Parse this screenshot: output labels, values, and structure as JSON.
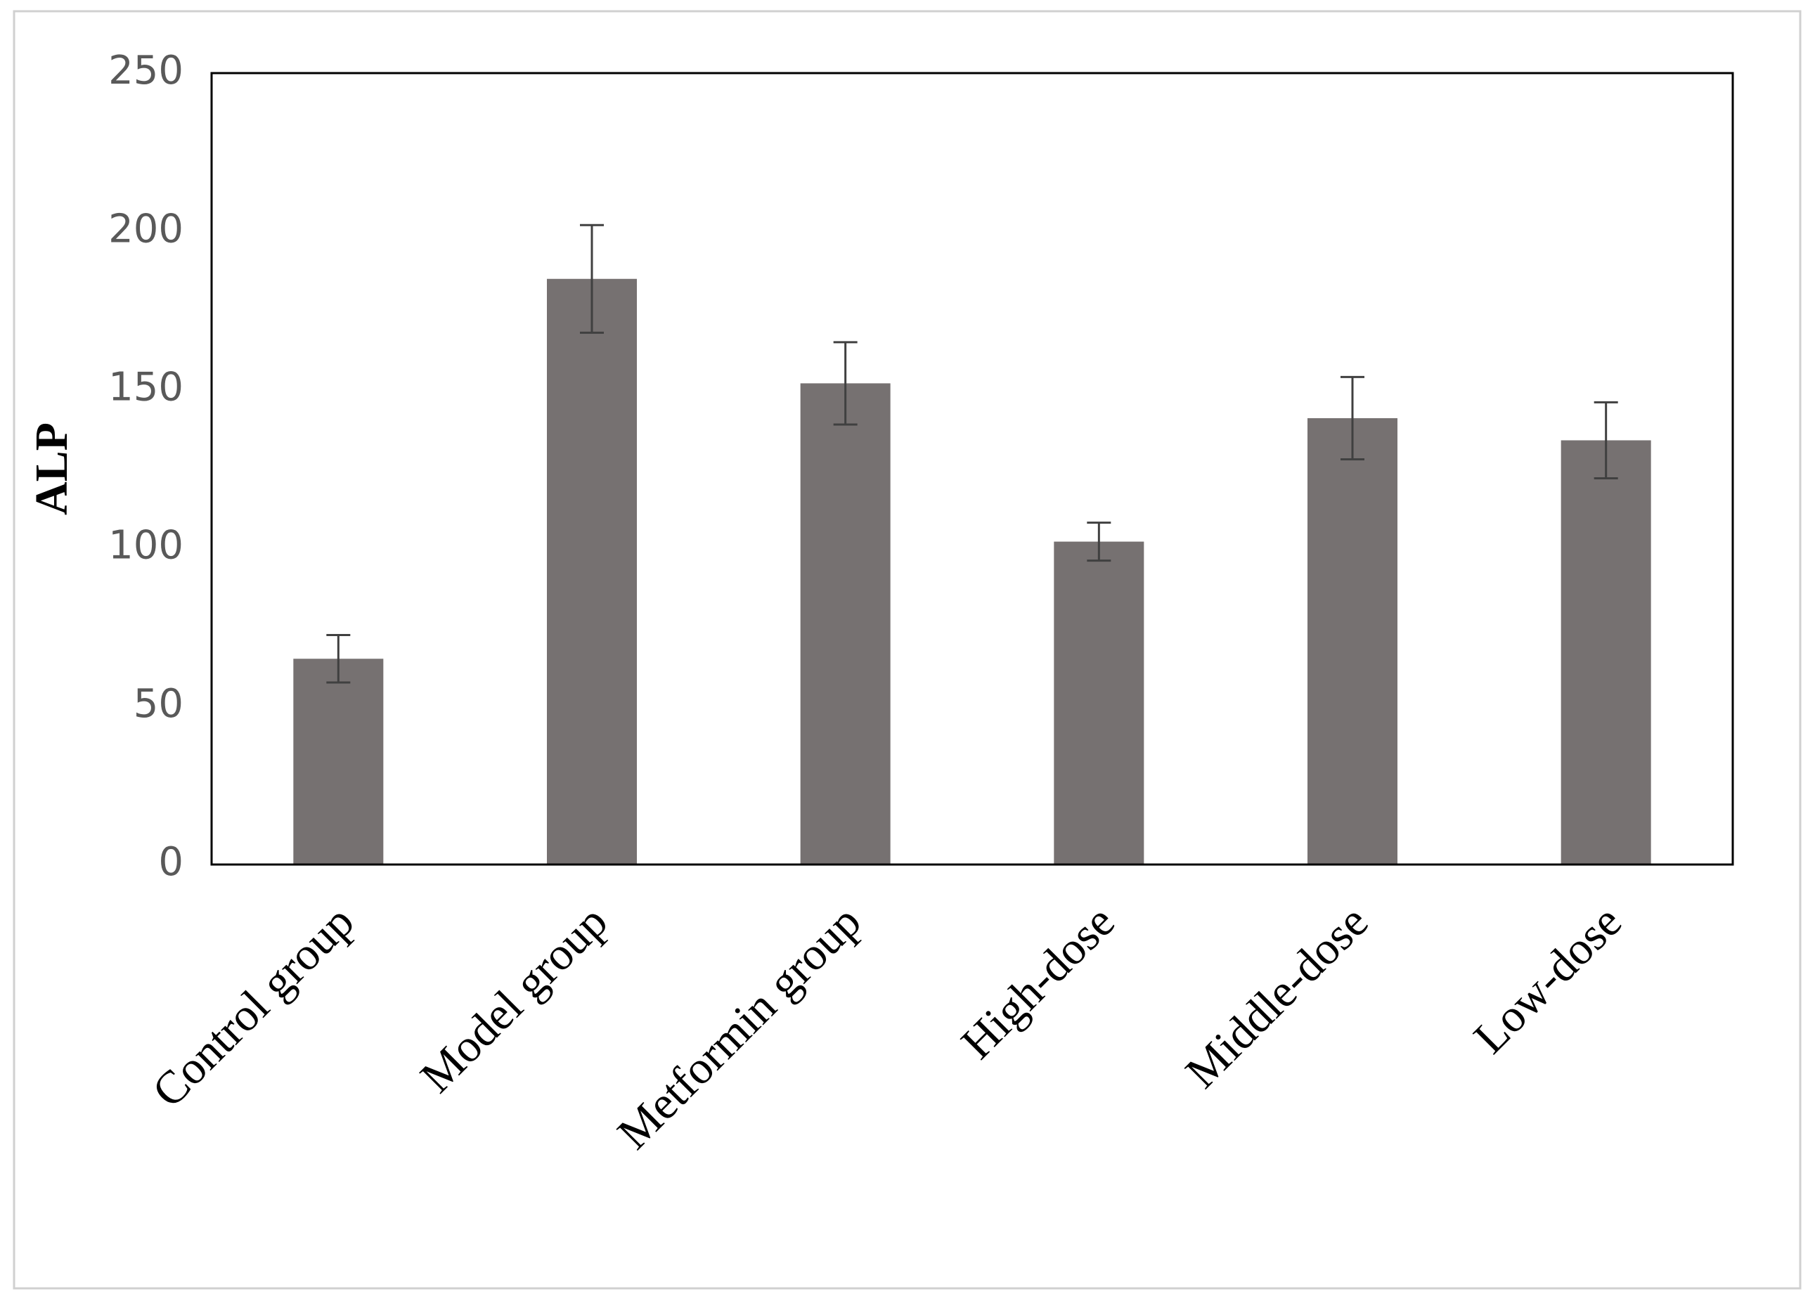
{
  "chart_data": {
    "type": "bar",
    "y_label": "ALP",
    "categories": [
      "Control group",
      "Model group",
      "Metformin group",
      "High-dose",
      "Middle-dose",
      "Low-dose"
    ],
    "values": [
      65,
      185,
      152,
      102,
      141,
      134
    ],
    "errors": [
      7.5,
      17,
      13,
      6,
      13,
      12
    ],
    "color": "#767171",
    "ylim": [
      0,
      250
    ],
    "yticks": [
      0,
      50,
      100,
      150,
      200,
      250
    ],
    "grid": false
  }
}
